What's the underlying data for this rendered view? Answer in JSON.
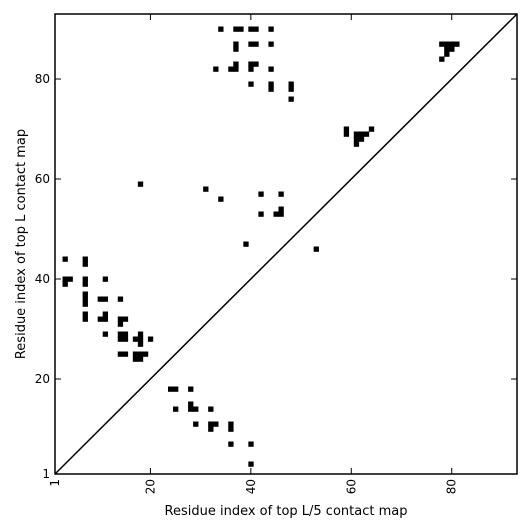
{
  "chart_data": {
    "type": "scatter",
    "title": "",
    "xlabel": "Residue index of top L/5 contact map",
    "ylabel": "Residue index of top L contact map",
    "xlim": [
      1,
      93
    ],
    "ylim": [
      1,
      93
    ],
    "x_ticks": [
      1,
      20,
      40,
      60,
      80
    ],
    "y_ticks": [
      1,
      20,
      40,
      60,
      80
    ],
    "x_tick_labels": [
      "1",
      "20",
      "40",
      "60",
      "80"
    ],
    "y_tick_labels": [
      "1",
      "20",
      "40",
      "60",
      "80"
    ],
    "x_tick_rotation": -90,
    "grid": false,
    "legend": "none",
    "diagonal": [
      [
        1,
        1
      ],
      [
        93,
        93
      ]
    ],
    "marker": "square",
    "marker_color": "#000000",
    "points": [
      [
        34,
        90
      ],
      [
        37,
        90
      ],
      [
        38,
        90
      ],
      [
        40,
        90
      ],
      [
        41,
        90
      ],
      [
        44,
        90
      ],
      [
        37,
        87
      ],
      [
        37,
        86
      ],
      [
        40,
        87
      ],
      [
        41,
        87
      ],
      [
        44,
        87
      ],
      [
        33,
        82
      ],
      [
        36,
        82
      ],
      [
        37,
        82
      ],
      [
        37,
        83
      ],
      [
        40,
        82
      ],
      [
        40,
        83
      ],
      [
        41,
        83
      ],
      [
        44,
        82
      ],
      [
        40,
        79
      ],
      [
        44,
        79
      ],
      [
        44,
        78
      ],
      [
        48,
        79
      ],
      [
        48,
        78
      ],
      [
        48,
        76
      ],
      [
        78,
        87
      ],
      [
        79,
        87
      ],
      [
        80,
        87
      ],
      [
        81,
        87
      ],
      [
        79,
        86
      ],
      [
        80,
        86
      ],
      [
        79,
        85
      ],
      [
        78,
        84
      ],
      [
        59,
        70
      ],
      [
        59,
        69
      ],
      [
        61,
        69
      ],
      [
        62,
        69
      ],
      [
        63,
        69
      ],
      [
        64,
        70
      ],
      [
        61,
        68
      ],
      [
        62,
        68
      ],
      [
        61,
        67
      ],
      [
        18,
        59
      ],
      [
        31,
        58
      ],
      [
        34,
        56
      ],
      [
        42,
        57
      ],
      [
        46,
        57
      ],
      [
        42,
        53
      ],
      [
        45,
        53
      ],
      [
        46,
        53
      ],
      [
        46,
        54
      ],
      [
        39,
        47
      ],
      [
        53,
        46
      ],
      [
        3,
        44
      ],
      [
        7,
        44
      ],
      [
        7,
        43
      ],
      [
        3,
        40
      ],
      [
        4,
        40
      ],
      [
        3,
        39
      ],
      [
        7,
        40
      ],
      [
        7,
        39
      ],
      [
        11,
        40
      ],
      [
        7,
        37
      ],
      [
        7,
        36
      ],
      [
        7,
        35
      ],
      [
        10,
        36
      ],
      [
        11,
        36
      ],
      [
        14,
        36
      ],
      [
        7,
        33
      ],
      [
        7,
        32
      ],
      [
        10,
        32
      ],
      [
        11,
        32
      ],
      [
        11,
        33
      ],
      [
        14,
        32
      ],
      [
        15,
        32
      ],
      [
        14,
        31
      ],
      [
        11,
        29
      ],
      [
        14,
        29
      ],
      [
        15,
        29
      ],
      [
        14,
        28
      ],
      [
        15,
        28
      ],
      [
        17,
        28
      ],
      [
        18,
        28
      ],
      [
        18,
        29
      ],
      [
        18,
        27
      ],
      [
        20,
        28
      ],
      [
        14,
        25
      ],
      [
        15,
        25
      ],
      [
        17,
        25
      ],
      [
        18,
        25
      ],
      [
        19,
        25
      ],
      [
        17,
        24
      ],
      [
        18,
        24
      ],
      [
        24,
        18
      ],
      [
        25,
        18
      ],
      [
        28,
        18
      ],
      [
        28,
        15
      ],
      [
        28,
        14
      ],
      [
        29,
        14
      ],
      [
        25,
        14
      ],
      [
        32,
        14
      ],
      [
        29,
        11
      ],
      [
        32,
        11
      ],
      [
        33,
        11
      ],
      [
        32,
        10
      ],
      [
        36,
        11
      ],
      [
        36,
        10
      ],
      [
        36,
        7
      ],
      [
        40,
        7
      ],
      [
        40,
        3
      ]
    ]
  }
}
